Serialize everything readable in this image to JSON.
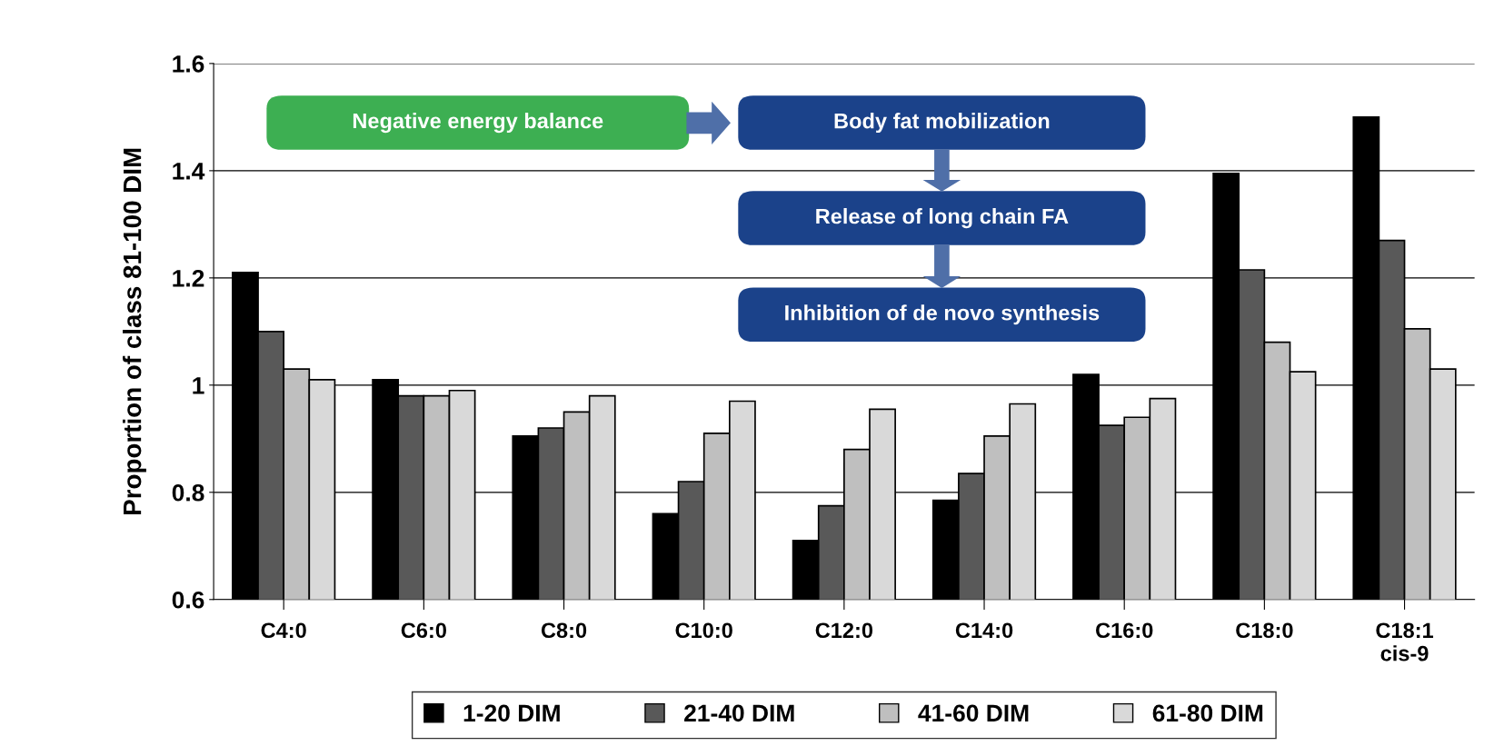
{
  "chart_data": {
    "type": "bar",
    "ylabel": "Proportion of class 81-100 DIM",
    "categories": [
      "C4:0",
      "C6:0",
      "C8:0",
      "C10:0",
      "C12:0",
      "C14:0",
      "C16:0",
      "C18:0",
      "C18:1\ncis-9"
    ],
    "series": [
      {
        "name": "1-20 DIM",
        "color": "#000000",
        "values": [
          1.21,
          1.01,
          0.905,
          0.76,
          0.71,
          0.785,
          1.02,
          1.395,
          1.5
        ]
      },
      {
        "name": "21-40 DIM",
        "color": "#595959",
        "values": [
          1.1,
          0.98,
          0.92,
          0.82,
          0.775,
          0.835,
          0.925,
          1.215,
          1.27
        ]
      },
      {
        "name": "41-60 DIM",
        "color": "#bfbfbf",
        "values": [
          1.03,
          0.98,
          0.95,
          0.91,
          0.88,
          0.905,
          0.94,
          1.08,
          1.105
        ]
      },
      {
        "name": "61-80 DIM",
        "color": "#d9d9d9",
        "values": [
          1.01,
          0.99,
          0.98,
          0.97,
          0.955,
          0.965,
          0.975,
          1.025,
          1.03
        ]
      }
    ],
    "ylim": [
      0.6,
      1.6
    ],
    "yticks": [
      0.6,
      0.8,
      1,
      1.2,
      1.4,
      1.6
    ],
    "grid": "y",
    "legend": "bottom",
    "annotations": [
      "Negative energy balance",
      "Body fat mobilization",
      "Release of long chain FA",
      "Inhibition of de novo synthesis"
    ]
  }
}
